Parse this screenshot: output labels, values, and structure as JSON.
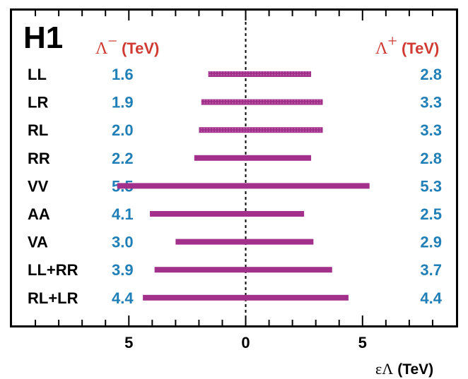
{
  "experiment_label": "H1",
  "header_left": {
    "symbol": "Λ",
    "superscript": "−",
    "unit": "(TeV)"
  },
  "header_right": {
    "symbol": "Λ",
    "superscript": "+",
    "unit": "(TeV)"
  },
  "x_axis_label": {
    "symbol": "εΛ",
    "unit": "(TeV)"
  },
  "colors": {
    "bar": "#a3318c",
    "value_text": "#1f7fb6",
    "header_text": "#d03a32"
  },
  "chart_data": {
    "type": "bar",
    "orientation": "horizontal-interval",
    "xlabel": "εΛ (TeV)",
    "xlim": [
      -10,
      9
    ],
    "x_ticks": [
      -5,
      0,
      5
    ],
    "x_tick_labels": [
      "5",
      "0",
      "5"
    ],
    "reference_line": 0,
    "categories": [
      "LL",
      "LR",
      "RL",
      "RR",
      "VV",
      "AA",
      "VA",
      "LL+RR",
      "RL+LR"
    ],
    "lambda_minus": [
      "1.6",
      "1.9",
      "2.0",
      "2.2",
      "5.5",
      "4.1",
      "3.0",
      "3.9",
      "4.4"
    ],
    "lambda_plus": [
      "2.8",
      "3.3",
      "3.3",
      "2.8",
      "5.3",
      "2.5",
      "2.9",
      "3.7",
      "4.4"
    ],
    "intervals": [
      [
        -1.6,
        2.8
      ],
      [
        -1.9,
        3.3
      ],
      [
        -2.0,
        3.3
      ],
      [
        -2.2,
        2.8
      ],
      [
        -5.5,
        5.3
      ],
      [
        -4.1,
        2.5
      ],
      [
        -3.0,
        2.9
      ],
      [
        -3.9,
        3.7
      ],
      [
        -4.4,
        4.4
      ]
    ],
    "hatched": [
      true,
      true,
      true,
      false,
      false,
      false,
      false,
      false,
      false
    ]
  }
}
